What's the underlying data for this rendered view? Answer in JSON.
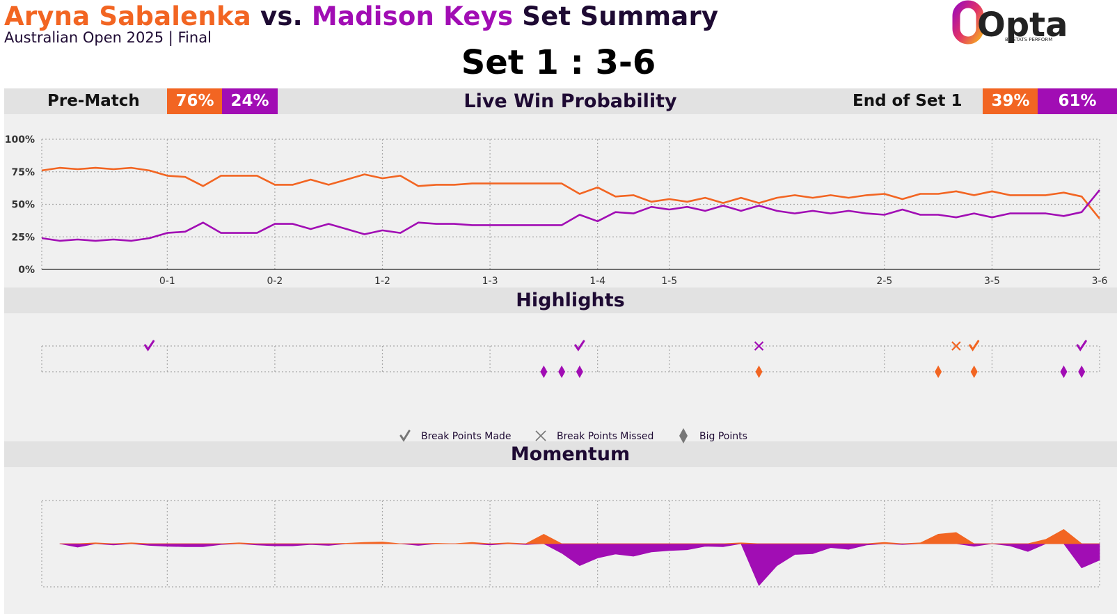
{
  "header": {
    "player1": "Aryna Sabalenka",
    "vs": " vs. ",
    "player2": "Madison Keys",
    "title_suffix": " Set Summary",
    "subtitle": "Australian Open 2025 | Final",
    "set_score": "Set 1 : 3-6"
  },
  "logo": {
    "text": "Opta",
    "tagline": "BY STATS PERFORM"
  },
  "colors": {
    "player1": "#f26522",
    "player2": "#a10db4",
    "accent": "#1e0a33",
    "panel": "#f0f0f0",
    "bar": "#e2e2e2",
    "neutral": "#777777"
  },
  "prob_bar": {
    "prematch_label": "Pre-Match",
    "prematch_p1": "76%",
    "prematch_p2": "24%",
    "title": "Live Win Probability",
    "end_label": "End of Set 1",
    "end_p1": "39%",
    "end_p2": "61%"
  },
  "highlights_bar": {
    "title": "Highlights"
  },
  "momentum_bar": {
    "title": "Momentum"
  },
  "legend": [
    {
      "icon": "check-icon",
      "label": "Break Points Made"
    },
    {
      "icon": "cross-icon",
      "label": "Break Points Missed"
    },
    {
      "icon": "diamond-icon",
      "label": "Big Points"
    }
  ],
  "chart_data": [
    {
      "type": "line",
      "title": "Live Win Probability",
      "xlabel": "",
      "ylabel": "",
      "ylim": [
        0,
        100
      ],
      "yticks": [
        "0%",
        "25%",
        "50%",
        "75%",
        "100%"
      ],
      "x_range": [
        0,
        59
      ],
      "game_ticks": [
        {
          "x": 7,
          "label": "0-1"
        },
        {
          "x": 13,
          "label": "0-2"
        },
        {
          "x": 19,
          "label": "1-2"
        },
        {
          "x": 25,
          "label": "1-3"
        },
        {
          "x": 31,
          "label": "1-4"
        },
        {
          "x": 35,
          "label": "1-5"
        },
        {
          "x": 47,
          "label": "2-5"
        },
        {
          "x": 53,
          "label": "3-5"
        },
        {
          "x": 59,
          "label": "3-6"
        }
      ],
      "grid": true,
      "series": [
        {
          "name": "Aryna Sabalenka",
          "color": "#f26522",
          "values": [
            76,
            78,
            77,
            78,
            77,
            78,
            76,
            72,
            71,
            64,
            72,
            72,
            72,
            65,
            65,
            69,
            65,
            69,
            73,
            70,
            72,
            64,
            65,
            65,
            66,
            66,
            66,
            66,
            66,
            66,
            58,
            63,
            56,
            57,
            52,
            54,
            52,
            55,
            51,
            55,
            51,
            55,
            57,
            55,
            57,
            55,
            57,
            58,
            54,
            58,
            58,
            60,
            57,
            60,
            57,
            57,
            57,
            59,
            56,
            39
          ]
        },
        {
          "name": "Madison Keys",
          "color": "#a10db4",
          "values": [
            24,
            22,
            23,
            22,
            23,
            22,
            24,
            28,
            29,
            36,
            28,
            28,
            28,
            35,
            35,
            31,
            35,
            31,
            27,
            30,
            28,
            36,
            35,
            35,
            34,
            34,
            34,
            34,
            34,
            34,
            42,
            37,
            44,
            43,
            48,
            46,
            48,
            45,
            49,
            45,
            49,
            45,
            43,
            45,
            43,
            45,
            43,
            42,
            46,
            42,
            42,
            40,
            43,
            40,
            43,
            43,
            43,
            41,
            44,
            61
          ]
        }
      ]
    },
    {
      "type": "scatter",
      "title": "Highlights",
      "x_range": [
        0,
        59
      ],
      "rows": [
        "break_points",
        "big_points"
      ],
      "break_points": [
        {
          "x": 6,
          "kind": "made",
          "player": "Madison Keys"
        },
        {
          "x": 30,
          "kind": "made",
          "player": "Madison Keys"
        },
        {
          "x": 40,
          "kind": "missed",
          "player": "Madison Keys"
        },
        {
          "x": 51,
          "kind": "missed",
          "player": "Aryna Sabalenka"
        },
        {
          "x": 52,
          "kind": "made",
          "player": "Aryna Sabalenka"
        },
        {
          "x": 58,
          "kind": "made",
          "player": "Madison Keys"
        }
      ],
      "big_points": [
        {
          "x": 28,
          "player": "Madison Keys"
        },
        {
          "x": 29,
          "player": "Madison Keys"
        },
        {
          "x": 30,
          "player": "Madison Keys"
        },
        {
          "x": 40,
          "player": "Aryna Sabalenka"
        },
        {
          "x": 50,
          "player": "Aryna Sabalenka"
        },
        {
          "x": 52,
          "player": "Aryna Sabalenka"
        },
        {
          "x": 57,
          "player": "Madison Keys"
        },
        {
          "x": 58,
          "player": "Madison Keys"
        }
      ]
    },
    {
      "type": "area",
      "title": "Momentum",
      "x_range": [
        0,
        59
      ],
      "ylim": [
        -1,
        1
      ],
      "start_x": 1,
      "values": [
        0,
        -0.08,
        0.02,
        -0.03,
        0.02,
        -0.04,
        -0.06,
        -0.07,
        -0.07,
        -0.02,
        0.02,
        -0.03,
        -0.05,
        -0.05,
        -0.02,
        -0.04,
        0.01,
        0.03,
        0.04,
        0.0,
        -0.04,
        0.01,
        0.0,
        0.03,
        -0.03,
        0.02,
        -0.02,
        0.22,
        -0.22,
        -0.51,
        -0.33,
        -0.24,
        -0.29,
        -0.19,
        -0.16,
        -0.14,
        -0.06,
        -0.07,
        0.02,
        -0.97,
        -0.51,
        -0.25,
        -0.23,
        -0.09,
        -0.13,
        -0.03,
        0.03,
        -0.02,
        0.02,
        0.22,
        0.26,
        -0.06,
        0.0,
        -0.05,
        -0.18,
        0.1,
        0.33,
        -0.56,
        -0.38
      ]
    }
  ]
}
